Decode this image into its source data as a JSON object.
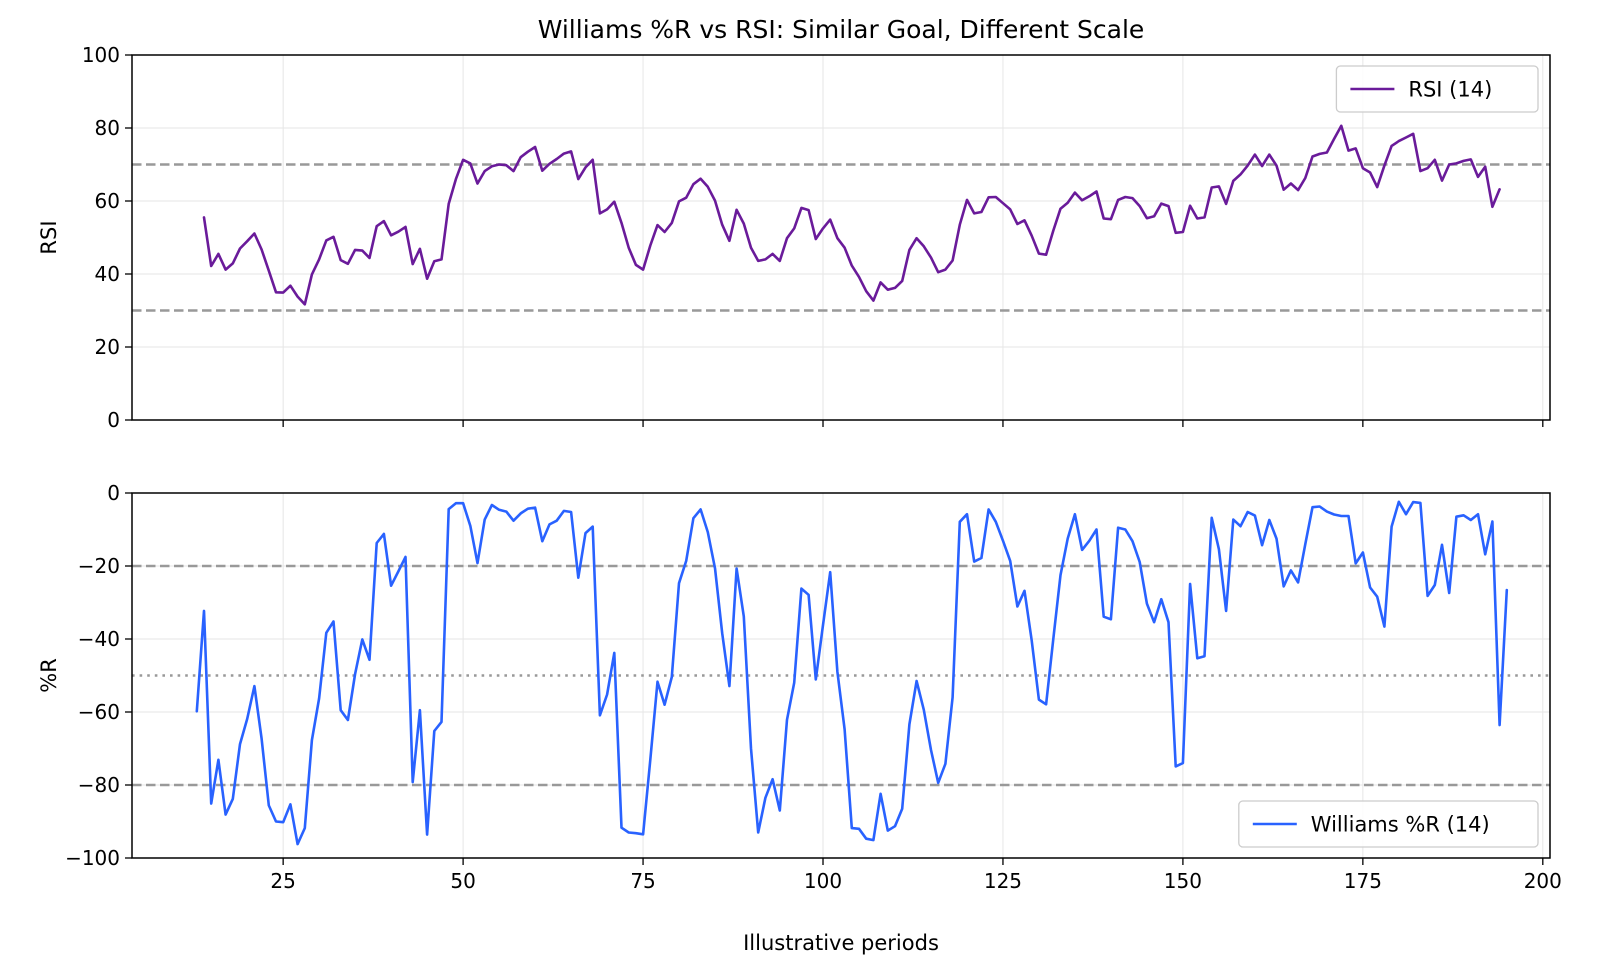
{
  "chart_data": {
    "type": "line",
    "title": "Williams %R vs RSI: Similar Goal, Different Scale",
    "xlabel": "Illustrative periods",
    "xlim": [
      4,
      201
    ],
    "xticks": [
      25,
      50,
      75,
      100,
      125,
      150,
      175,
      200
    ],
    "grid": true,
    "panels": [
      {
        "ylabel": "RSI",
        "ylim": [
          0,
          100
        ],
        "yticks": [
          0,
          20,
          40,
          60,
          80,
          100
        ],
        "yticklabels": [
          "0",
          "20",
          "40",
          "60",
          "80",
          "100"
        ],
        "show_xticklabels": false,
        "legend_position": "top-right",
        "reference_lines": [
          {
            "y": 70,
            "style": "dashed"
          },
          {
            "y": 30,
            "style": "dashed"
          }
        ],
        "series": [
          {
            "name": "RSI (14)",
            "color": "#6a1b9a",
            "x_start": 14,
            "values": [
              55.5,
              42.2,
              45.5,
              41.2,
              42.9,
              47.0,
              49.0,
              51.1,
              46.7,
              40.9,
              35.0,
              34.9,
              36.8,
              33.8,
              31.7,
              39.9,
              44.0,
              49.2,
              50.2,
              43.8,
              42.8,
              46.6,
              46.4,
              44.4,
              53.1,
              54.5,
              50.6,
              51.6,
              52.9,
              42.7,
              46.9,
              38.7,
              43.5,
              44.0,
              59.2,
              66.0,
              71.3,
              70.3,
              64.8,
              68.2,
              69.5,
              70.0,
              69.8,
              68.2,
              72.0,
              73.5,
              74.8,
              68.3,
              70.2,
              71.5,
              73.0,
              73.6,
              66.0,
              69.2,
              71.3,
              56.6,
              57.7,
              59.8,
              54.0,
              47.2,
              42.5,
              41.2,
              47.8,
              53.4,
              51.5,
              54.0,
              59.9,
              60.9,
              64.6,
              66.1,
              63.9,
              60.1,
              53.5,
              49.1,
              57.6,
              53.8,
              47.2,
              43.6,
              44.0,
              45.5,
              43.6,
              49.8,
              52.5,
              58.1,
              57.5,
              49.6,
              52.5,
              54.9,
              49.8,
              47.2,
              42.3,
              39.2,
              35.3,
              32.7,
              37.7,
              35.7,
              36.2,
              38.1,
              46.6,
              49.8,
              47.6,
              44.5,
              40.5,
              41.2,
              43.7,
              53.5,
              60.3,
              56.6,
              57.0,
              61.0,
              61.1,
              59.4,
              57.7,
              53.7,
              54.7,
              50.5,
              45.6,
              45.3,
              51.9,
              57.9,
              59.5,
              62.3,
              60.2,
              61.3,
              62.6,
              55.2,
              55.0,
              60.3,
              61.1,
              60.8,
              58.6,
              55.3,
              55.8,
              59.3,
              58.6,
              51.3,
              51.5,
              58.7,
              55.2,
              55.5,
              63.7,
              64.0,
              59.2,
              65.5,
              67.3,
              69.7,
              72.7,
              69.6,
              72.7,
              69.7,
              63.1,
              64.8,
              63.0,
              66.3,
              72.2,
              72.9,
              73.3,
              77.0,
              80.6,
              73.8,
              74.4,
              69.0,
              67.8,
              63.8,
              69.7,
              75.1,
              76.4,
              77.4,
              78.4,
              68.2,
              69.0,
              71.3,
              65.6,
              70.0,
              70.3,
              71.0,
              71.4,
              66.6,
              69.4,
              58.4,
              63.2
            ]
          }
        ]
      },
      {
        "ylabel": "%R",
        "ylim": [
          -100,
          0
        ],
        "yticks": [
          -100,
          -80,
          -60,
          -40,
          -20,
          0
        ],
        "yticklabels": [
          "−100",
          "−80",
          "−60",
          "−40",
          "−20",
          "0"
        ],
        "show_xticklabels": true,
        "legend_position": "bottom-right",
        "reference_lines": [
          {
            "y": -20,
            "style": "dashed"
          },
          {
            "y": -50,
            "style": "dotted"
          },
          {
            "y": -80,
            "style": "dashed"
          }
        ],
        "series": [
          {
            "name": "Williams %R (14)",
            "color": "#2962ff",
            "x_start": 13,
            "values": [
              -59.8,
              -32.3,
              -85.1,
              -73.1,
              -88.1,
              -83.8,
              -68.8,
              -61.9,
              -52.9,
              -67.3,
              -85.6,
              -90.0,
              -90.2,
              -85.3,
              -96.2,
              -91.8,
              -67.7,
              -56.3,
              -38.3,
              -35.2,
              -59.5,
              -62.2,
              -49.6,
              -40.1,
              -45.7,
              -13.7,
              -11.2,
              -25.4,
              -21.5,
              -17.5,
              -79.2,
              -59.5,
              -93.6,
              -65.2,
              -62.7,
              -4.4,
              -2.8,
              -2.8,
              -9.0,
              -19.2,
              -7.3,
              -3.3,
              -4.6,
              -5.1,
              -7.6,
              -5.6,
              -4.3,
              -4.0,
              -13.2,
              -8.6,
              -7.6,
              -4.9,
              -5.2,
              -23.2,
              -11.0,
              -9.2,
              -60.9,
              -55.2,
              -43.8,
              -91.7,
              -93.0,
              -93.2,
              -93.5,
              -73.1,
              -51.7,
              -58.0,
              -50.4,
              -24.7,
              -18.6,
              -6.9,
              -4.5,
              -10.7,
              -20.6,
              -38.4,
              -52.9,
              -20.7,
              -33.8,
              -70.0,
              -93.0,
              -83.5,
              -78.4,
              -87.0,
              -62.1,
              -52.0,
              -26.2,
              -27.9,
              -51.1,
              -36.2,
              -21.7,
              -49.0,
              -64.7,
              -91.8,
              -92.0,
              -94.7,
              -95.1,
              -82.4,
              -92.5,
              -91.3,
              -86.5,
              -63.4,
              -51.5,
              -59.4,
              -70.4,
              -79.4,
              -74.2,
              -56.0,
              -7.9,
              -5.8,
              -18.8,
              -17.8,
              -4.5,
              -7.9,
              -13.1,
              -18.6,
              -31.1,
              -26.8,
              -40.4,
              -56.6,
              -57.9,
              -40.0,
              -22.5,
              -12.5,
              -5.8,
              -15.6,
              -13.1,
              -10.0,
              -33.9,
              -34.6,
              -9.5,
              -10.0,
              -13.2,
              -18.9,
              -30.3,
              -35.4,
              -29.1,
              -35.4,
              -74.9,
              -74.0,
              -24.9,
              -45.3,
              -44.7,
              -6.8,
              -15.4,
              -32.3,
              -7.3,
              -9.1,
              -5.2,
              -6.2,
              -14.3,
              -7.4,
              -12.5,
              -25.6,
              -21.2,
              -24.5,
              -14.0,
              -3.9,
              -3.7,
              -5.1,
              -5.9,
              -6.3,
              -6.3,
              -19.3,
              -16.3,
              -25.9,
              -28.4,
              -36.6,
              -9.2,
              -2.4,
              -5.8,
              -2.5,
              -2.7,
              -28.2,
              -25.2,
              -14.2,
              -27.4,
              -6.5,
              -6.1,
              -7.4,
              -5.8,
              -16.8,
              -7.8,
              -63.6,
              -26.6
            ]
          }
        ]
      }
    ]
  }
}
